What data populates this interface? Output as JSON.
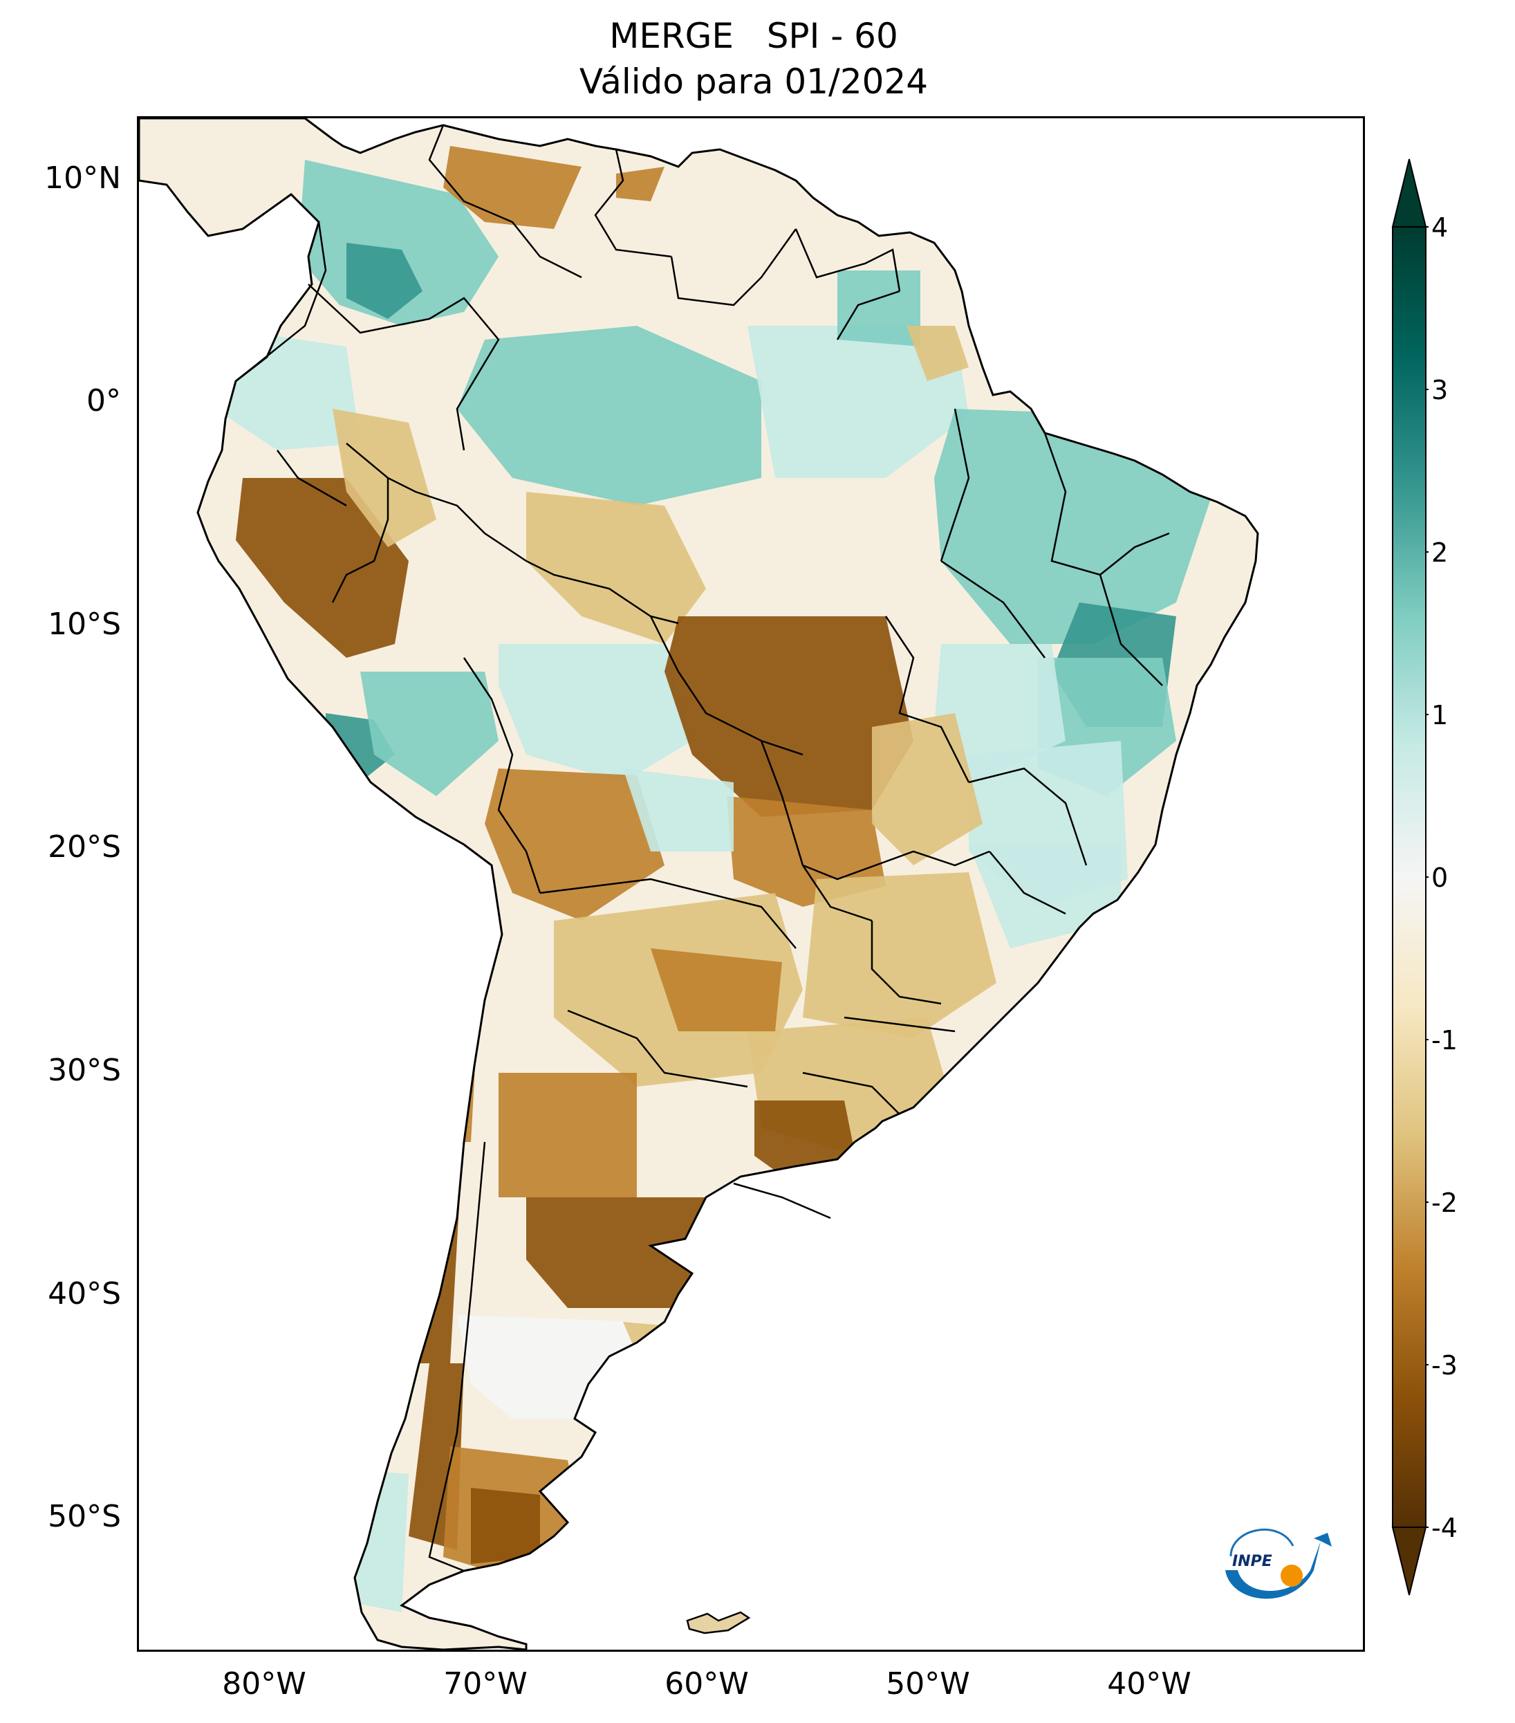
{
  "title": {
    "line1": "MERGE   SPI - 60",
    "line2": "Válido para 01/2024"
  },
  "map": {
    "latitude_labels": [
      "10°N",
      "0°",
      "10°S",
      "20°S",
      "30°S",
      "40°S",
      "50°S"
    ],
    "longitude_labels": [
      "80°W",
      "70°W",
      "60°W",
      "50°W",
      "40°W"
    ],
    "lat_values": [
      10,
      0,
      -10,
      -20,
      -30,
      -40,
      -50
    ],
    "lon_values": [
      -80,
      -70,
      -60,
      -50,
      -40
    ],
    "extent": {
      "lon_min": -85,
      "lon_max": -29.5,
      "lat_min": -56.5,
      "lat_max": 12.5
    }
  },
  "colorbar": {
    "ticks": [
      "4",
      "3",
      "2",
      "1",
      "0",
      "-1",
      "-2",
      "-3",
      "-4"
    ],
    "min": -4,
    "max": 4,
    "colors": {
      "dry_extreme": "#543005",
      "dry_strong": "#8c510a",
      "dry_moderate": "#bf812d",
      "dry_mild": "#dfc27d",
      "dry_light": "#f6e8c3",
      "neutral": "#f5f5f5",
      "wet_light": "#c7eae5",
      "wet_mild": "#80cdc1",
      "wet_moderate": "#35978f",
      "wet_strong": "#01665e",
      "wet_extreme": "#003c30"
    }
  },
  "logo": {
    "text": "INPE"
  }
}
